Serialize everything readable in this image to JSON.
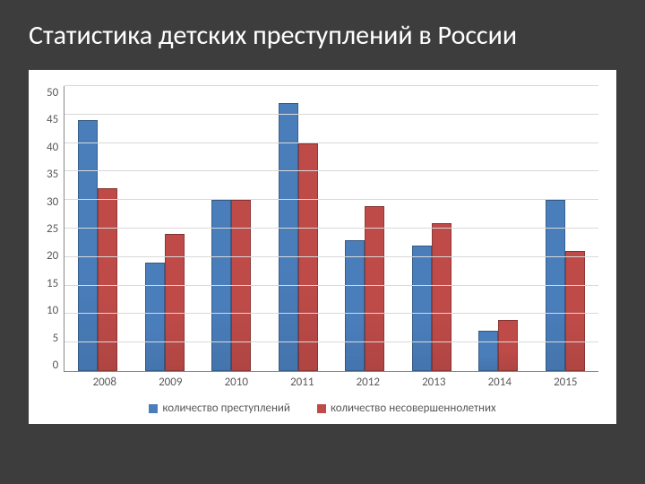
{
  "title": "Статистика детских преступлений в России",
  "chart": {
    "type": "bar",
    "categories": [
      "2008",
      "2009",
      "2010",
      "2011",
      "2012",
      "2013",
      "2014",
      "2015"
    ],
    "series": [
      {
        "name": "количество преступлений",
        "color": "#4a7ebb",
        "values": [
          44,
          19,
          30,
          47,
          23,
          22,
          7,
          30
        ]
      },
      {
        "name": "количество несовершеннолетних",
        "color": "#be4b48",
        "values": [
          32,
          24,
          30,
          40,
          29,
          26,
          9,
          21
        ]
      }
    ],
    "ylim": [
      0,
      50
    ],
    "ytick_step": 5,
    "grid_color": "#d9d9d9",
    "axis_color": "#888888",
    "background": "#ffffff",
    "text_color": "#595959",
    "label_fontsize": 13,
    "title_fontsize": 30,
    "page_background": "#3d3d3d"
  }
}
